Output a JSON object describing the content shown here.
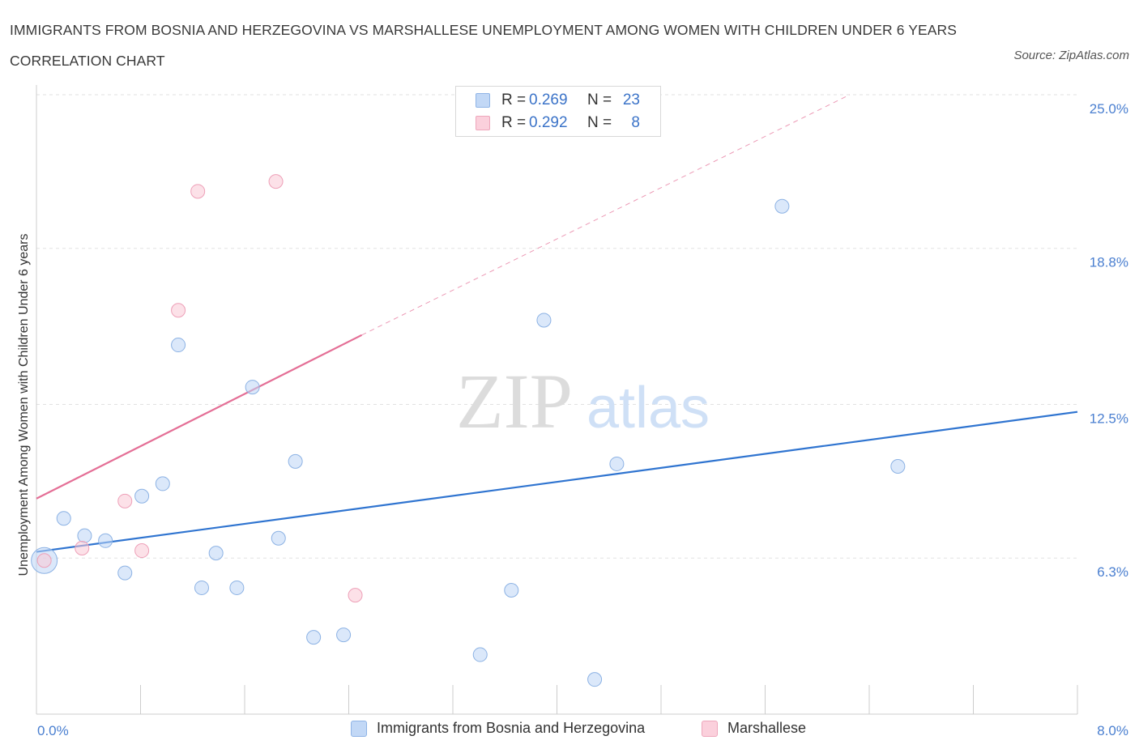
{
  "title": "IMMIGRANTS FROM BOSNIA AND HERZEGOVINA VS MARSHALLESE UNEMPLOYMENT AMONG WOMEN WITH CHILDREN UNDER 6 YEARS CORRELATION CHART",
  "source": "Source: ZipAtlas.com",
  "watermark": {
    "zip": "ZIP",
    "atlas": "atlas"
  },
  "legend": {
    "r_label": "R =",
    "n_label": "N =",
    "rows": [
      {
        "r": "0.269",
        "n": "23"
      },
      {
        "r": "0.292",
        "n": "8"
      }
    ]
  },
  "chart_data": {
    "type": "scatter",
    "title": "IMMIGRANTS FROM BOSNIA AND HERZEGOVINA VS MARSHALLESE UNEMPLOYMENT AMONG WOMEN WITH CHILDREN UNDER 6 YEARS CORRELATION CHART",
    "xlabel": "",
    "ylabel": "Unemployment Among Women with Children Under 6 years",
    "xlim": [
      0,
      8.0
    ],
    "ylim": [
      0,
      25.0
    ],
    "x_tick_labels": [
      "0.0%",
      "8.0%"
    ],
    "y_ticks": [
      6.3,
      12.5,
      18.8,
      25.0
    ],
    "y_tick_labels": [
      "6.3%",
      "12.5%",
      "18.8%",
      "25.0%"
    ],
    "grid": true,
    "legend_position": "bottom",
    "colors": {
      "series1": "#a9c8f0",
      "series1_line": "#2f74d0",
      "series2": "#f6b9cb",
      "series2_line": "#e46f96"
    },
    "series": [
      {
        "name": "Immigrants from Bosnia and Herzegovina",
        "r": 0.269,
        "n": 23,
        "points": [
          {
            "x": 0.06,
            "y": 6.2,
            "big": true
          },
          {
            "x": 0.21,
            "y": 7.9
          },
          {
            "x": 0.37,
            "y": 7.2
          },
          {
            "x": 0.53,
            "y": 7.0
          },
          {
            "x": 0.68,
            "y": 5.7
          },
          {
            "x": 0.81,
            "y": 8.8
          },
          {
            "x": 0.97,
            "y": 9.3
          },
          {
            "x": 1.09,
            "y": 14.9
          },
          {
            "x": 1.27,
            "y": 5.1
          },
          {
            "x": 1.38,
            "y": 6.5
          },
          {
            "x": 1.54,
            "y": 5.1
          },
          {
            "x": 1.66,
            "y": 13.2
          },
          {
            "x": 1.86,
            "y": 7.1
          },
          {
            "x": 1.99,
            "y": 10.2
          },
          {
            "x": 2.13,
            "y": 3.1
          },
          {
            "x": 2.36,
            "y": 3.2
          },
          {
            "x": 3.41,
            "y": 2.4
          },
          {
            "x": 3.65,
            "y": 5.0
          },
          {
            "x": 3.9,
            "y": 15.9
          },
          {
            "x": 4.29,
            "y": 1.4
          },
          {
            "x": 4.46,
            "y": 10.1
          },
          {
            "x": 5.73,
            "y": 20.5
          },
          {
            "x": 6.62,
            "y": 10.0
          }
        ],
        "trend": {
          "x0": 0.0,
          "y0": 6.55,
          "x1": 8.0,
          "y1": 12.2
        }
      },
      {
        "name": "Marshallese",
        "r": 0.292,
        "n": 8,
        "points": [
          {
            "x": 0.06,
            "y": 6.2
          },
          {
            "x": 0.35,
            "y": 6.7
          },
          {
            "x": 0.68,
            "y": 8.6
          },
          {
            "x": 0.81,
            "y": 6.6
          },
          {
            "x": 1.09,
            "y": 16.3
          },
          {
            "x": 1.24,
            "y": 21.1
          },
          {
            "x": 1.84,
            "y": 21.5
          },
          {
            "x": 2.45,
            "y": 4.8
          }
        ],
        "trend": {
          "x0": 0.0,
          "y0": 8.7,
          "x1": 2.5,
          "y1": 15.3
        },
        "trend_extension": {
          "x0": 2.5,
          "y0": 15.3,
          "x1": 6.25,
          "y1": 25.0
        }
      }
    ]
  }
}
